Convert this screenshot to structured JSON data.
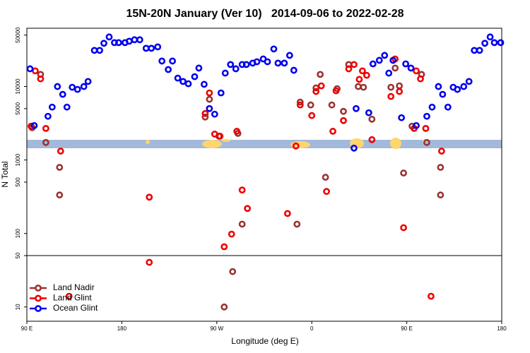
{
  "chart_data": {
    "type": "scatter",
    "title": "15N-20N January (Ver 10)   2014-09-06 to 2022-02-28",
    "xlabel": "Longitude (deg E)",
    "ylabel": "N Total",
    "xlim": [
      90,
      540
    ],
    "xticks": [
      {
        "value": 90,
        "label": "90 E"
      },
      {
        "value": 180,
        "label": "180"
      },
      {
        "value": 270,
        "label": "90 W"
      },
      {
        "value": 360,
        "label": "0"
      },
      {
        "value": 450,
        "label": "90 E"
      },
      {
        "value": 540,
        "label": "180"
      }
    ],
    "ylim": [
      6.4,
      62000
    ],
    "ylog": true,
    "yticks": [
      10,
      50,
      100,
      500,
      1000,
      5000,
      10000,
      50000
    ],
    "reference_line": 50,
    "legend": "lower left",
    "series": [
      {
        "name": "Land Nadir",
        "color": "#993333",
        "x": [
          95,
          103,
          108,
          121,
          121,
          259,
          263,
          272,
          290,
          294,
          346,
          349,
          359,
          364,
          368,
          373,
          379,
          384,
          390,
          395,
          404,
          409,
          417,
          435,
          439,
          443,
          447,
          455,
          464,
          469,
          482,
          482,
          285,
          277
        ],
        "values": [
          2750,
          14600,
          1730,
          794,
          334,
          3840,
          6690,
          2110,
          2300,
          134,
          134,
          6120,
          5600,
          9550,
          14600,
          582,
          5600,
          9330,
          4590,
          19900,
          9980,
          9760,
          3590,
          9760,
          17800,
          10200,
          665,
          2880,
          14600,
          1730,
          794,
          334,
          30.3,
          10
        ]
      },
      {
        "name": "Land Glint",
        "color": "#ee0000",
        "x": [
          94,
          98,
          103,
          108,
          122,
          130,
          206,
          206,
          259,
          263,
          268,
          273,
          289,
          294,
          299,
          284,
          277,
          337,
          345,
          349,
          360,
          364,
          369,
          374,
          380,
          383,
          390,
          395,
          400,
          405,
          408,
          412,
          417,
          435,
          439,
          443,
          447,
          457,
          459,
          463,
          468,
          473,
          483
        ],
        "values": [
          2880,
          16300,
          12700,
          2690,
          1320,
          14,
          312,
          40.5,
          4290,
          8170,
          2250,
          2110,
          2460,
          390,
          219,
          98,
          66,
          187,
          1550,
          5600,
          4020,
          8550,
          10200,
          373,
          2460,
          8730,
          3440,
          17400,
          19900,
          12500,
          16300,
          14200,
          1890,
          7310,
          23700,
          8550,
          120,
          2690,
          16300,
          12700,
          2690,
          14,
          1320
        ]
      },
      {
        "name": "Ocean Glint",
        "color": "#0000ee",
        "x": [
          93,
          97,
          110,
          114,
          119,
          124,
          128,
          133,
          138,
          144,
          148,
          154,
          159,
          163,
          168,
          173,
          177,
          183,
          187,
          192,
          197,
          203,
          208,
          214,
          218,
          224,
          228,
          233,
          238,
          243,
          249,
          253,
          258,
          263,
          268,
          274,
          278,
          283,
          288,
          294,
          298,
          304,
          308,
          314,
          318,
          324,
          328,
          334,
          339,
          343,
          400,
          402,
          414,
          418,
          424,
          429,
          433,
          437,
          445,
          449,
          454,
          459,
          469,
          474,
          480,
          484,
          489,
          494,
          498,
          504,
          509,
          514,
          519,
          524,
          529,
          533,
          539
        ],
        "values": [
          17400,
          2940,
          3930,
          5240,
          9980,
          7820,
          5240,
          9760,
          9130,
          9980,
          11700,
          31000,
          31000,
          38700,
          47200,
          39500,
          39500,
          39500,
          41300,
          43200,
          43200,
          33100,
          33100,
          34600,
          22200,
          17000,
          22200,
          13000,
          11700,
          10900,
          13600,
          17800,
          10700,
          5010,
          4200,
          8170,
          15200,
          19900,
          17400,
          19900,
          19900,
          20800,
          21700,
          23700,
          21700,
          32400,
          20800,
          20800,
          26500,
          16600,
          1450,
          5010,
          4390,
          20300,
          22700,
          26500,
          15200,
          22700,
          3760,
          20300,
          17800,
          2940,
          3930,
          5240,
          9980,
          7820,
          5240,
          9760,
          9130,
          9980,
          11700,
          31000,
          31000,
          38700,
          47200,
          39500,
          39500
        ]
      }
    ]
  }
}
